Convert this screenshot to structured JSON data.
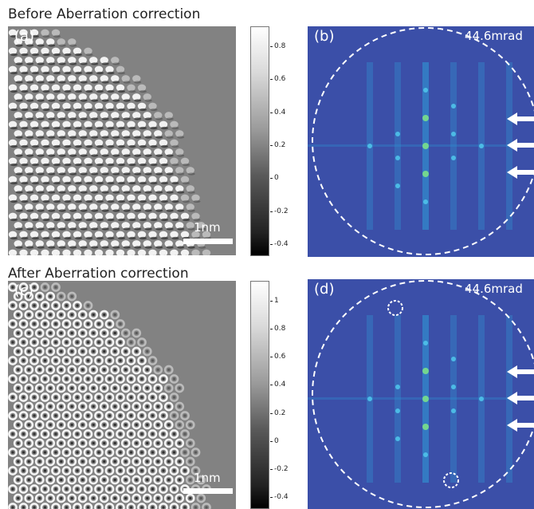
{
  "figure": {
    "top_title": "Before Aberration correction",
    "bottom_title": "After Aberration correction",
    "panels": {
      "a": "(a)",
      "b": "(b)",
      "c": "(c)",
      "d": "(d)"
    },
    "scale_bar_label": "1nm",
    "aperture_label": "44.6mrad",
    "colorbar_top": {
      "ticks": [
        "0.8",
        "0.6",
        "0.4",
        "0.2",
        "0",
        "-0.2",
        "-0.4"
      ]
    },
    "colorbar_bottom": {
      "ticks": [
        "1",
        "0.8",
        "0.6",
        "0.4",
        "0.2",
        "0",
        "-0.2",
        "-0.4"
      ]
    },
    "colors": {
      "fft_background": "#3b4fa8",
      "image_background": "#808080"
    }
  }
}
